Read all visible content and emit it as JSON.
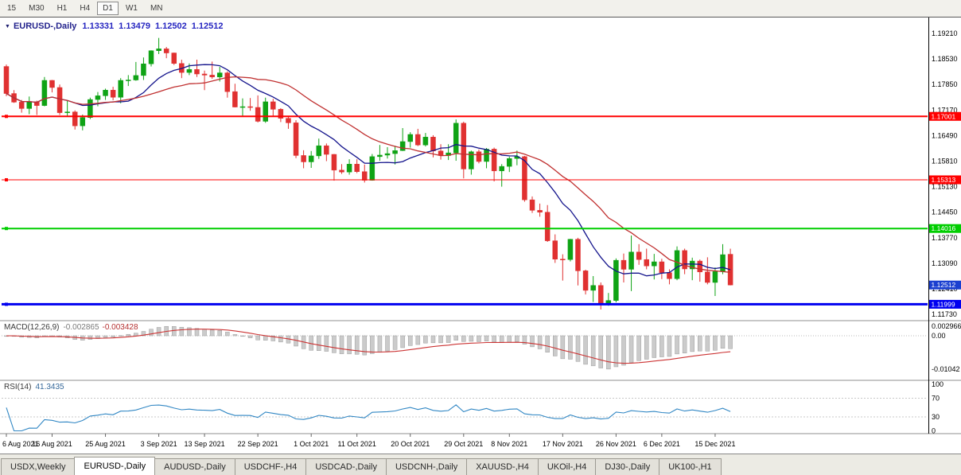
{
  "toolbar": {
    "timeframes": [
      {
        "label": "15",
        "active": false
      },
      {
        "label": "M30",
        "active": false
      },
      {
        "label": "H1",
        "active": false
      },
      {
        "label": "H4",
        "active": false
      },
      {
        "label": "D1",
        "active": true
      },
      {
        "label": "W1",
        "active": false
      },
      {
        "label": "MN",
        "active": false
      }
    ]
  },
  "chart": {
    "title_symbol": "EURUSD-,Daily",
    "ohlc": {
      "open": "1.13331",
      "high": "1.13479",
      "low": "1.12502",
      "close": "1.12512"
    },
    "colors": {
      "bull": "#0FA315",
      "bear": "#E03131",
      "ma_fast": "#14148C",
      "ma_slow": "#C03030",
      "macd_hist": "#CBCBCB",
      "macd_hist_border": "#9E9E9E",
      "macd_signal": "#CC3434",
      "rsi": "#3187C4"
    },
    "price_axis": [
      {
        "label": "1.19210",
        "value": 1.1921
      },
      {
        "label": "1.18530",
        "value": 1.1853
      },
      {
        "label": "1.17850",
        "value": 1.1785
      },
      {
        "label": "1.17170",
        "value": 1.1717
      },
      {
        "label": "1.16490",
        "value": 1.1649
      },
      {
        "label": "1.15810",
        "value": 1.1581
      },
      {
        "label": "1.15130",
        "value": 1.1513
      },
      {
        "label": "1.14450",
        "value": 1.1445
      },
      {
        "label": "1.13770",
        "value": 1.1377
      },
      {
        "label": "1.13090",
        "value": 1.1309
      },
      {
        "label": "1.12410",
        "value": 1.1241
      },
      {
        "label": "1.11730",
        "value": 1.1173
      }
    ],
    "hlines": [
      {
        "price": 1.17001,
        "label": "1.17001",
        "color": "#FF0000",
        "width": 2
      },
      {
        "price": 1.15313,
        "label": "1.15313",
        "color": "#FF0000",
        "width": 1
      },
      {
        "price": 1.14016,
        "label": "1.14016",
        "color": "#00CE00",
        "width": 2
      },
      {
        "price": 1.11999,
        "label": "1.11999",
        "color": "#0000F0",
        "width": 3
      }
    ],
    "current_price": {
      "label": "1.12512",
      "value": 1.12512,
      "color": "#1A3FD0"
    },
    "time_axis": {
      "ticks": [
        {
          "index": 0,
          "label": "6 Aug 2021"
        },
        {
          "index": 6,
          "label": "16 Aug 2021"
        },
        {
          "index": 13,
          "label": "25 Aug 2021"
        },
        {
          "index": 20,
          "label": "3 Sep 2021"
        },
        {
          "index": 26,
          "label": "13 Sep 2021"
        },
        {
          "index": 33,
          "label": "22 Sep 2021"
        },
        {
          "index": 40,
          "label": "1 Oct 2021"
        },
        {
          "index": 46,
          "label": "11 Oct 2021"
        },
        {
          "index": 53,
          "label": "20 Oct 2021"
        },
        {
          "index": 60,
          "label": "29 Oct 2021"
        },
        {
          "index": 66,
          "label": "8 Nov 2021"
        },
        {
          "index": 73,
          "label": "17 Nov 2021"
        },
        {
          "index": 80,
          "label": "26 Nov 2021"
        },
        {
          "index": 86,
          "label": "6 Dec 2021"
        },
        {
          "index": 93,
          "label": "15 Dec 2021"
        }
      ]
    }
  },
  "macd": {
    "label": "MACD(12,26,9)",
    "value_main": "-0.002865",
    "value_signal": "-0.003428",
    "axis": [
      {
        "label": "0.002966",
        "value": 0.002966
      },
      {
        "label": "0.00",
        "value": 0
      },
      {
        "label": "-0.01042",
        "value": -0.01042
      }
    ]
  },
  "rsi": {
    "label": "RSI(14)",
    "value": "41.3435",
    "axis": [
      {
        "label": "100",
        "value": 100
      },
      {
        "label": "70",
        "value": 70
      },
      {
        "label": "30",
        "value": 30
      },
      {
        "label": "0",
        "value": 0
      }
    ]
  },
  "tabs": [
    {
      "label": "USDX,Weekly",
      "active": false
    },
    {
      "label": "EURUSD-,Daily",
      "active": true
    },
    {
      "label": "AUDUSD-,Daily",
      "active": false
    },
    {
      "label": "USDCHF-,H4",
      "active": false
    },
    {
      "label": "USDCAD-,Daily",
      "active": false
    },
    {
      "label": "USDCNH-,Daily",
      "active": false
    },
    {
      "label": "XAUUSD-,H4",
      "active": false
    },
    {
      "label": "UKOil-,H4",
      "active": false
    },
    {
      "label": "DJ30-,Daily",
      "active": false
    },
    {
      "label": "UK100-,H1",
      "active": false
    }
  ],
  "chart_data": {
    "type": "candlestick",
    "title": "EURUSD-,Daily",
    "symbol": "EURUSD-",
    "timeframe": "Daily",
    "ylim": [
      1.1162,
      1.1955
    ],
    "overlays": [
      {
        "name": "fast-ma",
        "type": "SMA",
        "period": 10,
        "color": "#14148C"
      },
      {
        "name": "slow-ma",
        "type": "SMA",
        "period": 20,
        "color": "#C03030"
      }
    ],
    "indicators": [
      {
        "name": "MACD",
        "params": "12,26,9",
        "macd": -0.002865,
        "signal": -0.003428,
        "range_shown": [
          -0.01042,
          0.002966
        ]
      },
      {
        "name": "RSI",
        "params": "14",
        "value": 41.3435,
        "levels": [
          30,
          70
        ],
        "range": [
          0,
          100
        ]
      }
    ],
    "candles_format": [
      "date",
      "open",
      "high",
      "low",
      "close"
    ],
    "candles": [
      [
        "2021-08-06",
        1.1833,
        1.1838,
        1.1754,
        1.1761
      ],
      [
        "2021-08-09",
        1.1761,
        1.177,
        1.1736,
        1.1738
      ],
      [
        "2021-08-10",
        1.1738,
        1.1744,
        1.171,
        1.1721
      ],
      [
        "2021-08-11",
        1.1721,
        1.1753,
        1.1706,
        1.1739
      ],
      [
        "2021-08-12",
        1.1739,
        1.1742,
        1.1704,
        1.1729
      ],
      [
        "2021-08-13",
        1.1729,
        1.1805,
        1.1727,
        1.1796
      ],
      [
        "2021-08-16",
        1.1796,
        1.1797,
        1.1764,
        1.1777
      ],
      [
        "2021-08-17",
        1.1777,
        1.1785,
        1.1704,
        1.171
      ],
      [
        "2021-08-18",
        1.171,
        1.1742,
        1.17,
        1.1712
      ],
      [
        "2021-08-19",
        1.1712,
        1.1716,
        1.1665,
        1.1675
      ],
      [
        "2021-08-20",
        1.1675,
        1.1705,
        1.1663,
        1.1697
      ],
      [
        "2021-08-23",
        1.1697,
        1.175,
        1.1693,
        1.1745
      ],
      [
        "2021-08-24",
        1.1745,
        1.1765,
        1.1727,
        1.1755
      ],
      [
        "2021-08-25",
        1.1755,
        1.1774,
        1.1744,
        1.177
      ],
      [
        "2021-08-26",
        1.177,
        1.1779,
        1.1743,
        1.1751
      ],
      [
        "2021-08-27",
        1.1751,
        1.1802,
        1.1735,
        1.1796
      ],
      [
        "2021-08-30",
        1.1796,
        1.181,
        1.1781,
        1.1797
      ],
      [
        "2021-08-31",
        1.1797,
        1.1845,
        1.1795,
        1.1809
      ],
      [
        "2021-09-01",
        1.1809,
        1.1857,
        1.1797,
        1.184
      ],
      [
        "2021-09-02",
        1.184,
        1.1876,
        1.1833,
        1.1875
      ],
      [
        "2021-09-03",
        1.1875,
        1.1909,
        1.1866,
        1.188
      ],
      [
        "2021-09-06",
        1.188,
        1.1885,
        1.1855,
        1.1869
      ],
      [
        "2021-09-07",
        1.1869,
        1.187,
        1.1837,
        1.1841
      ],
      [
        "2021-09-08",
        1.1841,
        1.1851,
        1.1802,
        1.1817
      ],
      [
        "2021-09-09",
        1.1817,
        1.1841,
        1.181,
        1.1825
      ],
      [
        "2021-09-10",
        1.1825,
        1.1851,
        1.1805,
        1.1813
      ],
      [
        "2021-09-13",
        1.1813,
        1.1822,
        1.177,
        1.181
      ],
      [
        "2021-09-14",
        1.181,
        1.1846,
        1.18,
        1.1805
      ],
      [
        "2021-09-15",
        1.1805,
        1.1832,
        1.1793,
        1.1816
      ],
      [
        "2021-09-16",
        1.1816,
        1.182,
        1.175,
        1.1766
      ],
      [
        "2021-09-17",
        1.1766,
        1.1787,
        1.1724,
        1.1725
      ],
      [
        "2021-09-20",
        1.1725,
        1.1748,
        1.17,
        1.1726
      ],
      [
        "2021-09-21",
        1.1726,
        1.1749,
        1.1715,
        1.1724
      ],
      [
        "2021-09-22",
        1.1724,
        1.1756,
        1.1684,
        1.1687
      ],
      [
        "2021-09-23",
        1.1687,
        1.175,
        1.1683,
        1.1739
      ],
      [
        "2021-09-24",
        1.1739,
        1.1747,
        1.1701,
        1.1719
      ],
      [
        "2021-09-27",
        1.1719,
        1.1722,
        1.1685,
        1.1695
      ],
      [
        "2021-09-28",
        1.1695,
        1.17,
        1.1667,
        1.1683
      ],
      [
        "2021-09-29",
        1.1683,
        1.169,
        1.1589,
        1.1596
      ],
      [
        "2021-09-30",
        1.1596,
        1.161,
        1.1562,
        1.1579
      ],
      [
        "2021-10-01",
        1.1579,
        1.1608,
        1.1563,
        1.1595
      ],
      [
        "2021-10-04",
        1.1595,
        1.1641,
        1.1587,
        1.1622
      ],
      [
        "2021-10-05",
        1.1622,
        1.1628,
        1.1581,
        1.1599
      ],
      [
        "2021-10-06",
        1.1599,
        1.16,
        1.1529,
        1.1557
      ],
      [
        "2021-10-07",
        1.1557,
        1.1573,
        1.1547,
        1.1552
      ],
      [
        "2021-10-08",
        1.1552,
        1.1586,
        1.1545,
        1.1573
      ],
      [
        "2021-10-11",
        1.1573,
        1.1586,
        1.1549,
        1.1553
      ],
      [
        "2021-10-12",
        1.1553,
        1.1572,
        1.1524,
        1.153
      ],
      [
        "2021-10-13",
        1.153,
        1.16,
        1.1529,
        1.1593
      ],
      [
        "2021-10-14",
        1.1593,
        1.1624,
        1.1582,
        1.1597
      ],
      [
        "2021-10-15",
        1.1597,
        1.1618,
        1.1588,
        1.1601
      ],
      [
        "2021-10-18",
        1.1601,
        1.1622,
        1.1572,
        1.1609
      ],
      [
        "2021-10-19",
        1.1609,
        1.1669,
        1.1608,
        1.1633
      ],
      [
        "2021-10-20",
        1.1633,
        1.1658,
        1.1617,
        1.1652
      ],
      [
        "2021-10-21",
        1.1652,
        1.1667,
        1.1621,
        1.1624
      ],
      [
        "2021-10-22",
        1.1624,
        1.1656,
        1.162,
        1.1645
      ],
      [
        "2021-10-25",
        1.1645,
        1.165,
        1.1591,
        1.1608
      ],
      [
        "2021-10-26",
        1.1608,
        1.1626,
        1.1585,
        1.1596
      ],
      [
        "2021-10-27",
        1.1596,
        1.1626,
        1.1584,
        1.1603
      ],
      [
        "2021-10-28",
        1.1603,
        1.1692,
        1.1582,
        1.1682
      ],
      [
        "2021-10-29",
        1.1682,
        1.1686,
        1.1535,
        1.156
      ],
      [
        "2021-11-01",
        1.156,
        1.1609,
        1.1545,
        1.1606
      ],
      [
        "2021-11-02",
        1.1606,
        1.1612,
        1.1575,
        1.158
      ],
      [
        "2021-11-03",
        1.158,
        1.1616,
        1.1562,
        1.1613
      ],
      [
        "2021-11-04",
        1.1613,
        1.1617,
        1.1527,
        1.1555
      ],
      [
        "2021-11-05",
        1.1555,
        1.1573,
        1.1513,
        1.1567
      ],
      [
        "2021-11-08",
        1.1567,
        1.1593,
        1.1552,
        1.1588
      ],
      [
        "2021-11-09",
        1.1588,
        1.1609,
        1.157,
        1.1593
      ],
      [
        "2021-11-10",
        1.1593,
        1.1595,
        1.1473,
        1.1478
      ],
      [
        "2021-11-11",
        1.1478,
        1.1487,
        1.1443,
        1.145
      ],
      [
        "2021-11-12",
        1.145,
        1.1468,
        1.1433,
        1.1445
      ],
      [
        "2021-11-15",
        1.1445,
        1.1464,
        1.1366,
        1.1369
      ],
      [
        "2021-11-16",
        1.1369,
        1.1386,
        1.131,
        1.132
      ],
      [
        "2021-11-17",
        1.132,
        1.1333,
        1.1263,
        1.1319
      ],
      [
        "2021-11-18",
        1.1319,
        1.1374,
        1.1314,
        1.1373
      ],
      [
        "2021-11-19",
        1.1373,
        1.1377,
        1.125,
        1.1289
      ],
      [
        "2021-11-22",
        1.1289,
        1.1292,
        1.1226,
        1.1237
      ],
      [
        "2021-11-23",
        1.1237,
        1.1275,
        1.1206,
        1.125
      ],
      [
        "2021-11-24",
        1.125,
        1.1258,
        1.1186,
        1.12
      ],
      [
        "2021-11-25",
        1.12,
        1.123,
        1.1196,
        1.121
      ],
      [
        "2021-11-26",
        1.121,
        1.1322,
        1.1205,
        1.1317
      ],
      [
        "2021-11-29",
        1.1317,
        1.1335,
        1.1258,
        1.1293
      ],
      [
        "2021-11-30",
        1.1293,
        1.1383,
        1.1235,
        1.1339
      ],
      [
        "2021-12-01",
        1.1339,
        1.136,
        1.1305,
        1.1319
      ],
      [
        "2021-12-02",
        1.1319,
        1.1348,
        1.1293,
        1.1302
      ],
      [
        "2021-12-03",
        1.1302,
        1.1334,
        1.1266,
        1.1313
      ],
      [
        "2021-12-06",
        1.1313,
        1.1321,
        1.1267,
        1.1284
      ],
      [
        "2021-12-07",
        1.1284,
        1.1293,
        1.1253,
        1.1268
      ],
      [
        "2021-12-08",
        1.1268,
        1.1354,
        1.1264,
        1.1343
      ],
      [
        "2021-12-09",
        1.1343,
        1.1348,
        1.128,
        1.1294
      ],
      [
        "2021-12-10",
        1.1294,
        1.1324,
        1.1264,
        1.1315
      ],
      [
        "2021-12-13",
        1.1315,
        1.1319,
        1.126,
        1.1286
      ],
      [
        "2021-12-14",
        1.1286,
        1.1325,
        1.1253,
        1.1258
      ],
      [
        "2021-12-15",
        1.1258,
        1.1298,
        1.1222,
        1.1287
      ],
      [
        "2021-12-16",
        1.1287,
        1.136,
        1.128,
        1.1332
      ],
      [
        "2021-12-17",
        1.13331,
        1.13479,
        1.12502,
        1.12512
      ]
    ]
  }
}
